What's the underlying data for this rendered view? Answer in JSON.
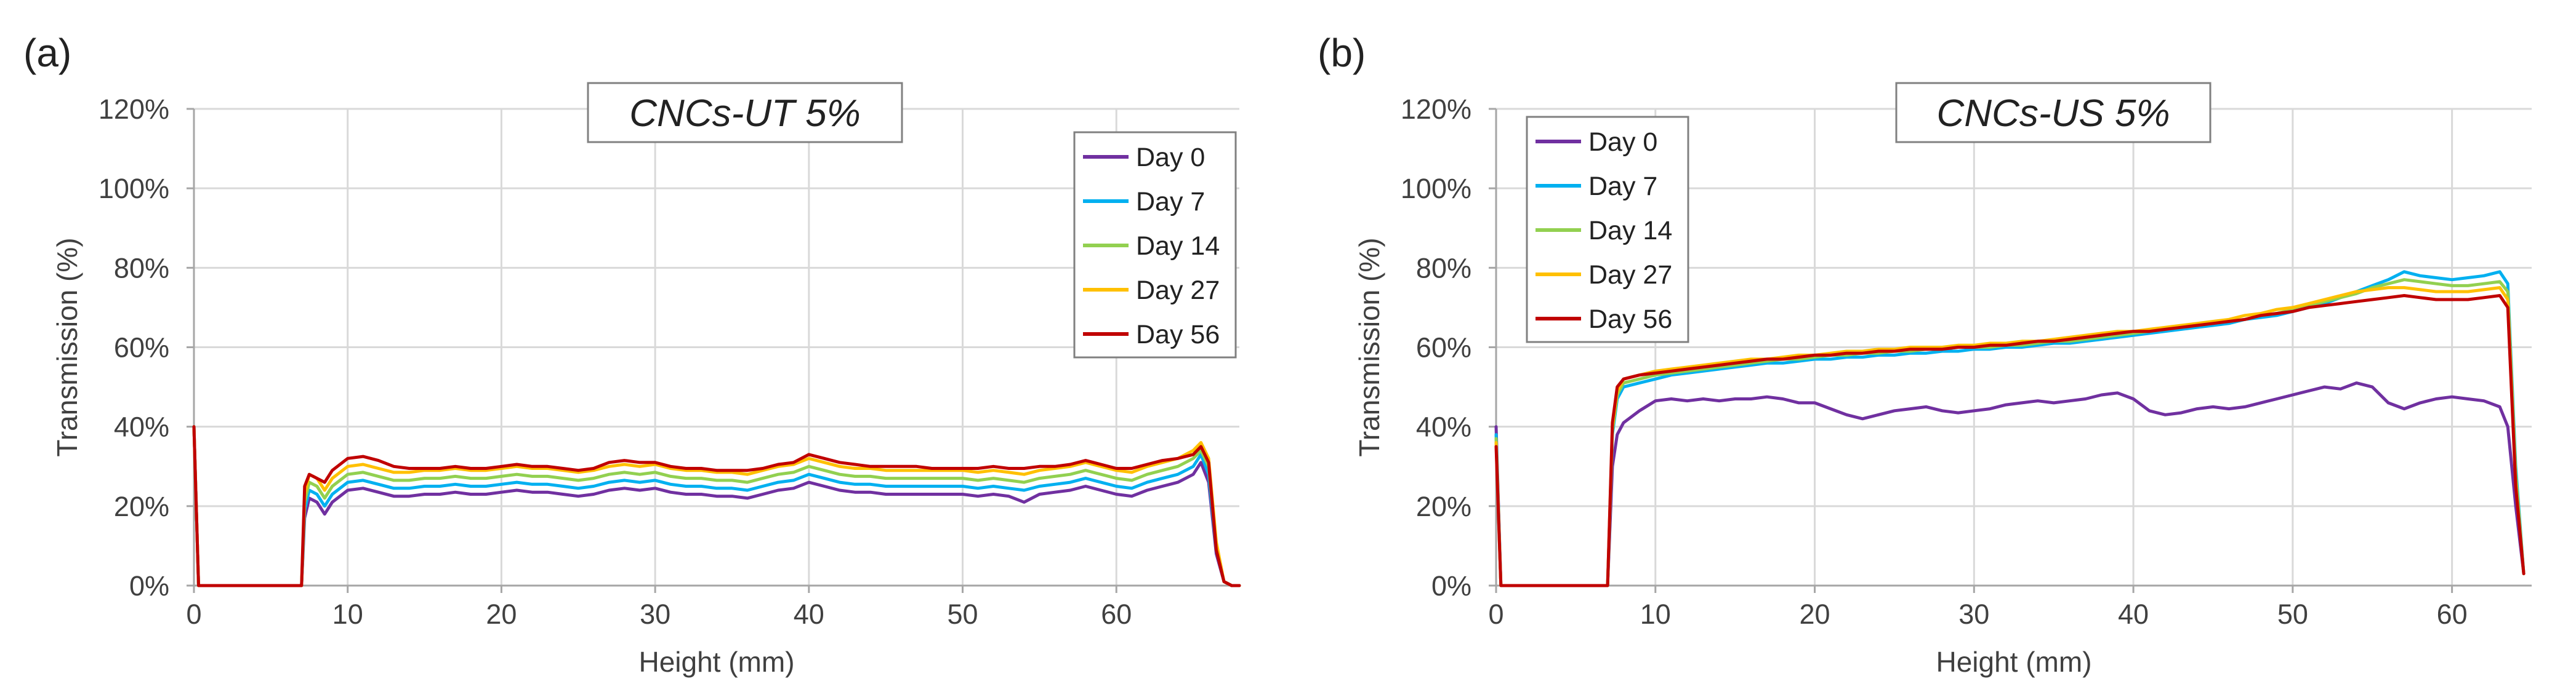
{
  "chart_data": [
    {
      "type": "line",
      "panel_label": "(a)",
      "title": "CNCs-UT 5%",
      "xlabel": "Height (mm)",
      "ylabel": "Transmission (%)",
      "xlim": [
        0,
        68
      ],
      "ylim": [
        0,
        120
      ],
      "xticks": [
        0,
        10,
        20,
        30,
        40,
        50,
        60
      ],
      "yticks": [
        0,
        20,
        40,
        60,
        80,
        100,
        120
      ],
      "xtick_labels": [
        "0",
        "10",
        "20",
        "30",
        "40",
        "50",
        "60"
      ],
      "ytick_labels": [
        "0%",
        "20%",
        "40%",
        "60%",
        "80%",
        "100%",
        "120%"
      ],
      "grid": true,
      "legend_position": "top-right",
      "x": [
        0,
        0.3,
        7,
        7.2,
        7.5,
        8,
        8.5,
        9,
        10,
        11,
        12,
        13,
        14,
        15,
        16,
        17,
        18,
        19,
        20,
        21,
        22,
        23,
        24,
        25,
        26,
        27,
        28,
        29,
        30,
        31,
        32,
        33,
        34,
        35,
        36,
        37,
        38,
        39,
        40,
        41,
        42,
        43,
        44,
        45,
        46,
        47,
        48,
        49,
        50,
        51,
        52,
        53,
        54,
        55,
        56,
        57,
        58,
        59,
        60,
        61,
        62,
        63,
        64,
        65,
        65.5,
        66,
        66.5,
        67,
        67.5,
        68
      ],
      "series": [
        {
          "name": "Day 0",
          "color": "#7030a0",
          "values": [
            40,
            0,
            0,
            17,
            22,
            21,
            18,
            21,
            24,
            24.5,
            23.5,
            22.5,
            22.5,
            23,
            23,
            23.5,
            23,
            23,
            23.5,
            24,
            23.5,
            23.5,
            23,
            22.5,
            23,
            24,
            24.5,
            24,
            24.5,
            23.5,
            23,
            23,
            22.5,
            22.5,
            22,
            23,
            24,
            24.5,
            26,
            25,
            24,
            23.5,
            23.5,
            23,
            23,
            23,
            23,
            23,
            23,
            22.5,
            23,
            22.5,
            21,
            23,
            23.5,
            24,
            25,
            24,
            23,
            22.5,
            24,
            25,
            26,
            28,
            31,
            26,
            8,
            1,
            0,
            0
          ]
        },
        {
          "name": "Day 7",
          "color": "#00b0f0",
          "values": [
            40,
            0,
            0,
            19,
            24,
            23,
            20,
            23,
            26,
            26.5,
            25.5,
            24.5,
            24.5,
            25,
            25,
            25.5,
            25,
            25,
            25.5,
            26,
            25.5,
            25.5,
            25,
            24.5,
            25,
            26,
            26.5,
            26,
            26.5,
            25.5,
            25,
            25,
            24.5,
            24.5,
            24,
            25,
            26,
            26.5,
            28,
            27,
            26,
            25.5,
            25.5,
            25,
            25,
            25,
            25,
            25,
            25,
            24.5,
            25,
            24.5,
            24,
            25,
            25.5,
            26,
            27,
            26,
            25,
            24.5,
            26,
            27,
            28,
            30,
            33,
            28,
            9,
            1,
            0,
            0
          ]
        },
        {
          "name": "Day 14",
          "color": "#92d050",
          "values": [
            40,
            0,
            0,
            21,
            26,
            25,
            22,
            25,
            28,
            28.5,
            27.5,
            26.5,
            26.5,
            27,
            27,
            27.5,
            27,
            27,
            27.5,
            28,
            27.5,
            27.5,
            27,
            26.5,
            27,
            28,
            28.5,
            28,
            28.5,
            27.5,
            27,
            27,
            26.5,
            26.5,
            26,
            27,
            28,
            28.5,
            30,
            29,
            28,
            27.5,
            27.5,
            27,
            27,
            27,
            27,
            27,
            27,
            26.5,
            27,
            26.5,
            26,
            27,
            27.5,
            28,
            29,
            28,
            27,
            26.5,
            28,
            29,
            30,
            32,
            34,
            30,
            10,
            1,
            0,
            0
          ]
        },
        {
          "name": "Day 27",
          "color": "#ffc000",
          "values": [
            40,
            0,
            0,
            23,
            28,
            27,
            24,
            27,
            30,
            30.5,
            29.5,
            28.5,
            28.5,
            29,
            29,
            29.5,
            29,
            29,
            29.5,
            30,
            29.5,
            29.5,
            29,
            28.5,
            29,
            30,
            30.5,
            30,
            30.5,
            29.5,
            29,
            29,
            28.5,
            28.5,
            28,
            29,
            30,
            30.5,
            32,
            31,
            30,
            29.5,
            29.5,
            29,
            29,
            29,
            29,
            29,
            29,
            28.5,
            29,
            28.5,
            28,
            29,
            29.5,
            30,
            31,
            30,
            29,
            28.5,
            30,
            31,
            32,
            34,
            36,
            32,
            11,
            1,
            0,
            0
          ]
        },
        {
          "name": "Day 56",
          "color": "#c00000",
          "values": [
            40,
            0,
            0,
            25,
            28,
            27,
            26,
            29,
            32,
            32.5,
            31.5,
            30,
            29.5,
            29.5,
            29.5,
            30,
            29.5,
            29.5,
            30,
            30.5,
            30,
            30,
            29.5,
            29,
            29.5,
            31,
            31.5,
            31,
            31,
            30,
            29.5,
            29.5,
            29,
            29,
            29,
            29.5,
            30.5,
            31,
            33,
            32,
            31,
            30.5,
            30,
            30,
            30,
            30,
            29.5,
            29.5,
            29.5,
            29.5,
            30,
            29.5,
            29.5,
            30,
            30,
            30.5,
            31.5,
            30.5,
            29.5,
            29.5,
            30.5,
            31.5,
            32,
            33,
            35,
            31,
            9,
            1,
            0,
            0
          ]
        }
      ]
    },
    {
      "type": "line",
      "panel_label": "(b)",
      "title": "CNCs-US 5%",
      "xlabel": "Height (mm)",
      "ylabel": "Transmission (%)",
      "xlim": [
        0,
        65
      ],
      "ylim": [
        0,
        120
      ],
      "xticks": [
        0,
        10,
        20,
        30,
        40,
        50,
        60
      ],
      "yticks": [
        0,
        20,
        40,
        60,
        80,
        100,
        120
      ],
      "xtick_labels": [
        "0",
        "10",
        "20",
        "30",
        "40",
        "50",
        "60"
      ],
      "ytick_labels": [
        "0%",
        "20%",
        "40%",
        "60%",
        "80%",
        "100%",
        "120%"
      ],
      "grid": true,
      "legend_position": "top-left",
      "x": [
        0,
        0.3,
        7,
        7.3,
        7.6,
        8,
        9,
        10,
        11,
        12,
        13,
        14,
        15,
        16,
        17,
        18,
        19,
        20,
        21,
        22,
        23,
        24,
        25,
        26,
        27,
        28,
        29,
        30,
        31,
        32,
        33,
        34,
        35,
        36,
        37,
        38,
        39,
        40,
        41,
        42,
        43,
        44,
        45,
        46,
        47,
        48,
        49,
        50,
        51,
        52,
        53,
        54,
        55,
        56,
        57,
        58,
        59,
        60,
        61,
        62,
        63,
        63.5,
        64,
        64.5
      ],
      "series": [
        {
          "name": "Day 0",
          "color": "#7030a0",
          "values": [
            40,
            0,
            0,
            30,
            38,
            41,
            44,
            46.5,
            47,
            46.5,
            47,
            46.5,
            47,
            47,
            47.5,
            47,
            46,
            46,
            44.5,
            43,
            42,
            43,
            44,
            44.5,
            45,
            44,
            43.5,
            44,
            44.5,
            45.5,
            46,
            46.5,
            46,
            46.5,
            47,
            48,
            48.5,
            47,
            44,
            43,
            43.5,
            44.5,
            45,
            44.5,
            45,
            46,
            47,
            48,
            49,
            50,
            49.5,
            51,
            50,
            46,
            44.5,
            46,
            47,
            47.5,
            47,
            46.5,
            45,
            40,
            20,
            3
          ]
        },
        {
          "name": "Day 7",
          "color": "#00b0f0",
          "values": [
            38,
            0,
            0,
            38,
            47,
            50,
            51,
            52,
            53,
            53.5,
            54,
            54.5,
            55,
            55.5,
            56,
            56,
            56.5,
            57,
            57,
            57.5,
            57.5,
            58,
            58,
            58.5,
            58.5,
            59,
            59,
            59.5,
            59.5,
            60,
            60,
            60.5,
            61,
            61,
            61.5,
            62,
            62.5,
            63,
            63.5,
            64,
            64.5,
            65,
            65.5,
            66,
            67,
            67.5,
            68,
            69,
            70,
            71,
            72.5,
            74,
            75.5,
            77,
            79,
            78,
            77.5,
            77,
            77.5,
            78,
            79,
            76,
            30,
            3
          ]
        },
        {
          "name": "Day 14",
          "color": "#92d050",
          "values": [
            37,
            0,
            0,
            39,
            48,
            51,
            52,
            53,
            53.5,
            54,
            54.5,
            55,
            55.5,
            56,
            56.5,
            57,
            57,
            57.5,
            58,
            58,
            58.5,
            58.5,
            59,
            59,
            59.5,
            59.5,
            60,
            60,
            60,
            60.5,
            60.5,
            61,
            61.5,
            61.5,
            62,
            62.5,
            63,
            63.5,
            64,
            64.5,
            65,
            65.5,
            66,
            66.5,
            67,
            68,
            68.5,
            69.5,
            70.5,
            71.5,
            72.5,
            73.5,
            75,
            76,
            77,
            76.5,
            76,
            75.5,
            75.5,
            76,
            76.5,
            74,
            28,
            3
          ]
        },
        {
          "name": "Day 27",
          "color": "#ffc000",
          "values": [
            36,
            0,
            0,
            40,
            49,
            52,
            53,
            54,
            54.5,
            55,
            55.5,
            56,
            56.5,
            57,
            57,
            57.5,
            58,
            58,
            58.5,
            59,
            59,
            59.5,
            59.5,
            60,
            60,
            60,
            60.5,
            60.5,
            61,
            61,
            61.5,
            61.5,
            62,
            62.5,
            63,
            63.5,
            64,
            64,
            64.5,
            65,
            65.5,
            66,
            66.5,
            67,
            68,
            68.5,
            69.5,
            70,
            71,
            72,
            73,
            74,
            74.5,
            75,
            75,
            74.5,
            74,
            74,
            74,
            74.5,
            75,
            72,
            26,
            3
          ]
        },
        {
          "name": "Day 56",
          "color": "#c00000",
          "values": [
            35,
            0,
            0,
            41,
            50,
            52,
            53,
            53.5,
            54,
            54.5,
            55,
            55.5,
            56,
            56.5,
            57,
            57,
            57.5,
            58,
            58,
            58.5,
            58.5,
            59,
            59,
            59.5,
            59.5,
            59.5,
            60,
            60,
            60.5,
            60.5,
            61,
            61.5,
            61.5,
            62,
            62.5,
            63,
            63.5,
            64,
            64,
            64.5,
            65,
            65.5,
            66,
            66.5,
            67,
            68,
            68.5,
            69,
            70,
            70.5,
            71,
            71.5,
            72,
            72.5,
            73,
            72.5,
            72,
            72,
            72,
            72.5,
            73,
            70,
            25,
            3
          ]
        }
      ]
    }
  ]
}
